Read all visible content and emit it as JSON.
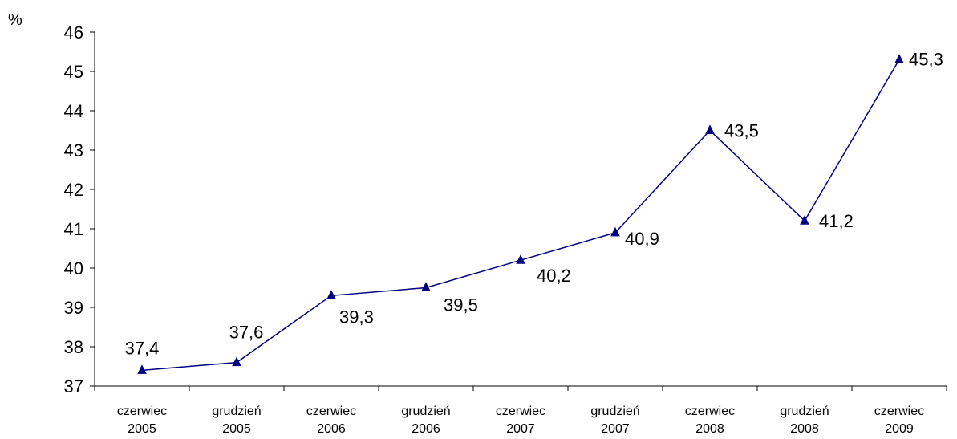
{
  "chart_data": {
    "type": "line",
    "ylabel": "%",
    "ylim": [
      37,
      46
    ],
    "yticks": [
      "37",
      "38",
      "39",
      "40",
      "41",
      "42",
      "43",
      "44",
      "45",
      "46"
    ],
    "categories": [
      [
        "czerwiec",
        "2005"
      ],
      [
        "grudzień",
        "2005"
      ],
      [
        "czerwiec",
        "2006"
      ],
      [
        "grudzień",
        "2006"
      ],
      [
        "czerwiec",
        "2007"
      ],
      [
        "grudzień",
        "2007"
      ],
      [
        "czerwiec",
        "2008"
      ],
      [
        "grudzień",
        "2008"
      ],
      [
        "czerwiec",
        "2009"
      ]
    ],
    "values": [
      37.4,
      37.6,
      39.3,
      39.5,
      40.2,
      40.9,
      43.5,
      41.2,
      45.3
    ],
    "value_labels": [
      "37,4",
      "37,6",
      "39,3",
      "39,5",
      "40,2",
      "40,9",
      "43,5",
      "41,2",
      "45,3"
    ],
    "marker": "triangle",
    "line_color": "#000080",
    "grid": false,
    "legend": "none"
  }
}
